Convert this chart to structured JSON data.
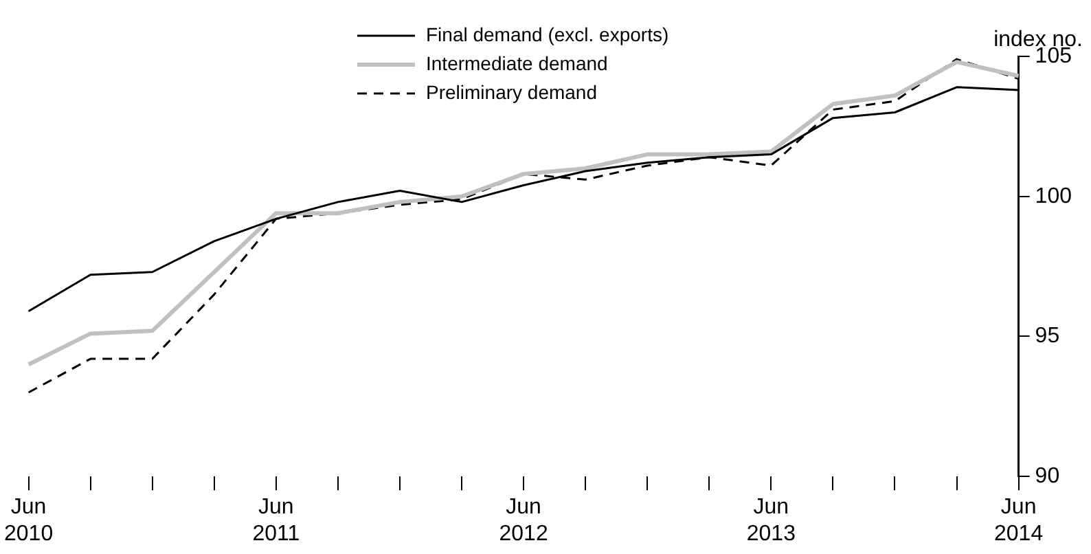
{
  "chart_data": {
    "type": "line",
    "ylabel": "index no.",
    "legend": "top",
    "grid": false,
    "categories": [
      "Jun 2010",
      null,
      null,
      null,
      "Jun 2011",
      null,
      null,
      null,
      "Jun 2012",
      null,
      null,
      null,
      "Jun 2013",
      null,
      null,
      null,
      "Jun 2014"
    ],
    "ylim": [
      90,
      105
    ],
    "yticks": [
      90,
      95,
      100,
      105
    ],
    "series": [
      {
        "name": "Final demand (excl. exports)",
        "color": "#000000",
        "line_style": "solid",
        "values": [
          95.9,
          97.2,
          97.3,
          98.4,
          99.2,
          99.8,
          100.2,
          99.8,
          100.4,
          100.9,
          101.2,
          101.4,
          101.5,
          102.8,
          103.0,
          103.9,
          103.8
        ]
      },
      {
        "name": "Intermediate demand",
        "color": "#c0c0c0",
        "line_style": "solid",
        "values": [
          94.0,
          95.1,
          95.2,
          97.3,
          99.4,
          99.4,
          99.8,
          100.0,
          100.8,
          101.0,
          101.5,
          101.5,
          101.6,
          103.3,
          103.6,
          104.8,
          104.3
        ]
      },
      {
        "name": "Preliminary demand",
        "color": "#000000",
        "line_style": "dashed",
        "values": [
          93.0,
          94.2,
          94.2,
          96.5,
          99.2,
          99.4,
          99.7,
          99.9,
          100.8,
          100.6,
          101.1,
          101.4,
          101.1,
          103.1,
          103.4,
          104.9,
          104.2
        ]
      }
    ]
  }
}
